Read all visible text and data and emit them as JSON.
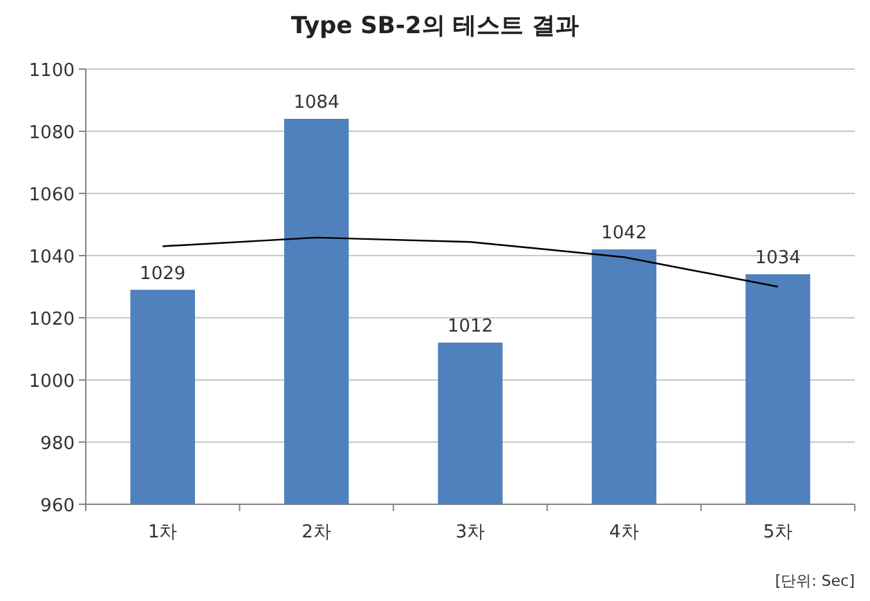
{
  "chart_data": {
    "type": "bar",
    "title": "Type SB-2의 테스트 결과",
    "categories": [
      "1차",
      "2차",
      "3차",
      "4차",
      "5차"
    ],
    "series": [
      {
        "color": "#4f81bd",
        "values": [
          1029,
          1084,
          1012,
          1042,
          1034
        ],
        "value_labels": [
          "1029",
          "1084",
          "1012",
          "1042",
          "1034"
        ]
      },
      {
        "type": "line",
        "color": "#000000",
        "x": [
          "1차",
          "2차",
          "3차",
          "4차",
          "5차"
        ],
        "values": [
          1043,
          1045.8,
          1044.4,
          1039.5,
          1030
        ]
      }
    ],
    "ylim": [
      960,
      1100
    ],
    "yticks": [
      960,
      980,
      1000,
      1020,
      1040,
      1060,
      1080,
      1100
    ],
    "grid": "y",
    "annotations": [
      "[단위: Sec]"
    ]
  }
}
